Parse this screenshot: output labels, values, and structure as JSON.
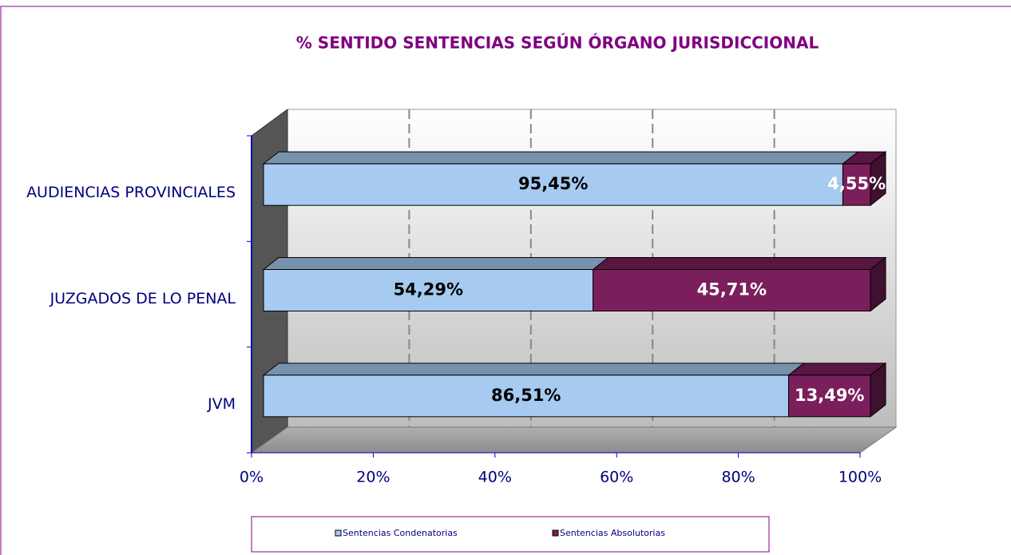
{
  "chart_data": {
    "type": "bar",
    "orientation": "horizontal",
    "stacked": true,
    "title": "% SENTIDO SENTENCIAS SEGÚN ÓRGANO JURISDICCIONAL",
    "categories": [
      "AUDIENCIAS PROVINCIALES",
      "JUZGADOS DE LO PENAL",
      "JVM"
    ],
    "series": [
      {
        "name": "Sentencias Condenatorias",
        "color": "#a6caf0",
        "values": [
          95.45,
          54.29,
          86.51
        ],
        "value_labels": [
          "95,45%",
          "54,29%",
          "86,51%"
        ]
      },
      {
        "name": "Sentencias Absolutorias",
        "color": "#7b1f5c",
        "values": [
          4.55,
          45.71,
          13.49
        ],
        "value_labels": [
          "4,55%",
          "45,71%",
          "13,49%"
        ]
      }
    ],
    "xlim": [
      0,
      100
    ],
    "xticks": [
      {
        "value": 0,
        "label": "0%"
      },
      {
        "value": 20,
        "label": "20%"
      },
      {
        "value": 40,
        "label": "40%"
      },
      {
        "value": 60,
        "label": "60%"
      },
      {
        "value": 80,
        "label": "80%"
      },
      {
        "value": 100,
        "label": "100%"
      }
    ],
    "grid": true
  }
}
